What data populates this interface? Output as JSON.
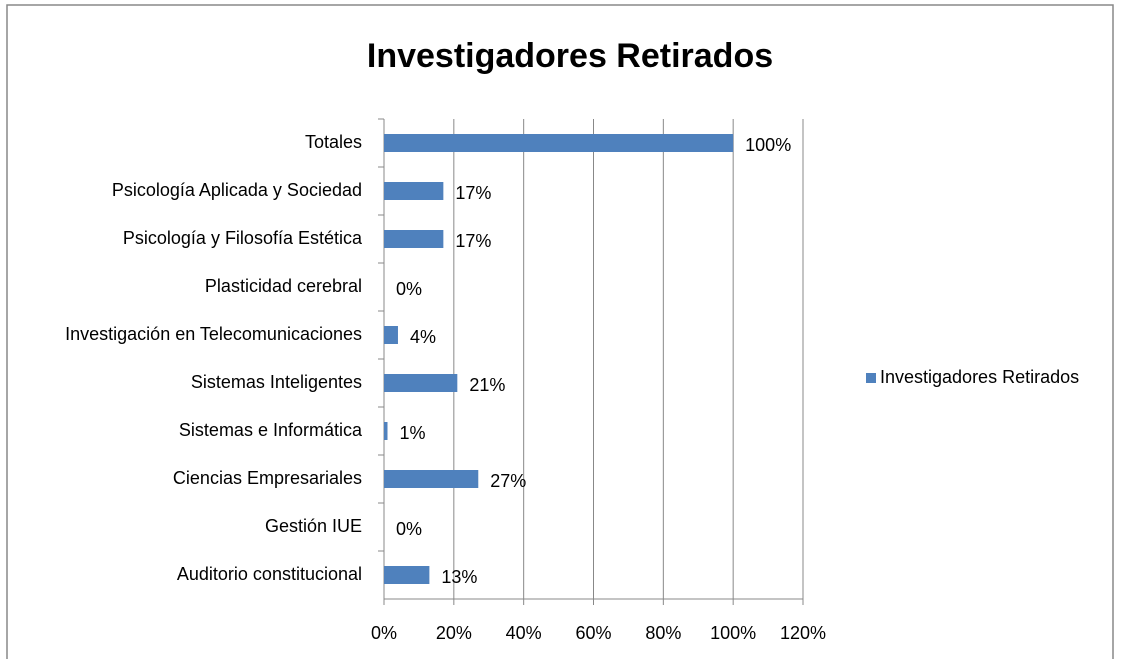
{
  "chart_data": {
    "type": "bar",
    "orientation": "horizontal",
    "title": "Investigadores Retirados",
    "categories": [
      "Totales",
      "Psicología Aplicada y Sociedad",
      "Psicología y Filosofía Estética",
      "Plasticidad cerebral",
      "Investigación en Telecomunicaciones",
      "Sistemas Inteligentes",
      "Sistemas e Informática",
      "Ciencias Empresariales",
      "Gestión IUE",
      "Auditorio constitucional"
    ],
    "series": [
      {
        "name": "Investigadores Retirados",
        "color": "#4f81bd",
        "values": [
          100,
          17,
          17,
          0,
          4,
          21,
          1,
          27,
          0,
          13
        ],
        "value_labels": [
          "100%",
          "17%",
          "17%",
          "0%",
          "4%",
          "21%",
          "1%",
          "27%",
          "0%",
          "13%"
        ]
      }
    ],
    "xlim": [
      0,
      120
    ],
    "xticks": [
      {
        "value": 0,
        "label": "0%"
      },
      {
        "value": 20,
        "label": "20%"
      },
      {
        "value": 40,
        "label": "40%"
      },
      {
        "value": 60,
        "label": "60%"
      },
      {
        "value": 80,
        "label": "80%"
      },
      {
        "value": 100,
        "label": "100%"
      },
      {
        "value": 120,
        "label": "120%"
      }
    ],
    "grid": true,
    "legend": "right"
  }
}
